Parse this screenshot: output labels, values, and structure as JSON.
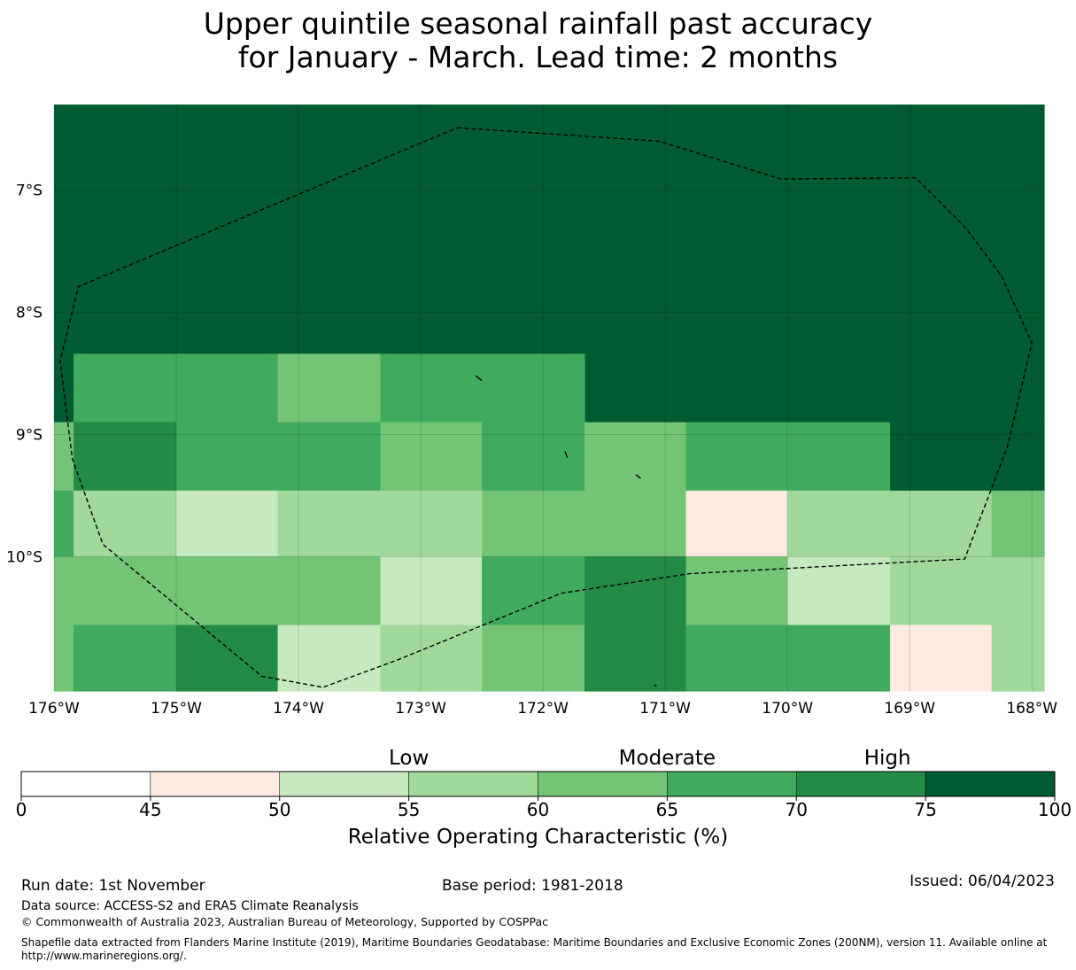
{
  "title_line1": "Upper quintile seasonal rainfall past accuracy",
  "title_line2": "for January - March. Lead time: 2 months",
  "chart_data": {
    "type": "heatmap",
    "x_ticks": [
      -176,
      -175,
      -174,
      -173,
      -172,
      -171,
      -170,
      -169,
      -168
    ],
    "x_tick_labels": [
      "176°W",
      "175°W",
      "174°W",
      "173°W",
      "172°W",
      "171°W",
      "170°W",
      "169°W",
      "168°W"
    ],
    "y_ticks": [
      -7,
      -8,
      -9,
      -10
    ],
    "y_tick_labels": [
      "7°S",
      "8°S",
      "9°S",
      "10°S"
    ],
    "xlim": [
      -176.0,
      -167.9
    ],
    "ylim": [
      -11.1,
      -6.3
    ],
    "cells": [
      {
        "lon": [
          -176.0,
          -167.9
        ],
        "lat": [
          -8.9,
          -6.3
        ],
        "roc": 80
      },
      {
        "lon": [
          -175.84,
          -175.0
        ],
        "lat": [
          -8.9,
          -8.34
        ],
        "roc": 67
      },
      {
        "lon": [
          -175.0,
          -174.17
        ],
        "lat": [
          -8.9,
          -8.34
        ],
        "roc": 67
      },
      {
        "lon": [
          -174.17,
          -173.33
        ],
        "lat": [
          -8.9,
          -8.34
        ],
        "roc": 62
      },
      {
        "lon": [
          -173.33,
          -172.5
        ],
        "lat": [
          -8.9,
          -8.34
        ],
        "roc": 67
      },
      {
        "lon": [
          -172.5,
          -171.66
        ],
        "lat": [
          -8.9,
          -8.34
        ],
        "roc": 67
      },
      {
        "lon": [
          -176.0,
          -175.84
        ],
        "lat": [
          -9.46,
          -8.9
        ],
        "roc": 62
      },
      {
        "lon": [
          -175.84,
          -175.0
        ],
        "lat": [
          -9.46,
          -8.9
        ],
        "roc": 72
      },
      {
        "lon": [
          -175.0,
          -174.17
        ],
        "lat": [
          -9.46,
          -8.9
        ],
        "roc": 67
      },
      {
        "lon": [
          -174.17,
          -173.33
        ],
        "lat": [
          -9.46,
          -8.9
        ],
        "roc": 67
      },
      {
        "lon": [
          -173.33,
          -172.5
        ],
        "lat": [
          -9.46,
          -8.9
        ],
        "roc": 62
      },
      {
        "lon": [
          -172.5,
          -171.66
        ],
        "lat": [
          -9.46,
          -8.9
        ],
        "roc": 67
      },
      {
        "lon": [
          -171.66,
          -170.83
        ],
        "lat": [
          -9.46,
          -8.9
        ],
        "roc": 62
      },
      {
        "lon": [
          -170.83,
          -170.0
        ],
        "lat": [
          -9.46,
          -8.9
        ],
        "roc": 67
      },
      {
        "lon": [
          -170.0,
          -169.16
        ],
        "lat": [
          -9.46,
          -8.9
        ],
        "roc": 67
      },
      {
        "lon": [
          -169.16,
          -167.9
        ],
        "lat": [
          -9.46,
          -8.9
        ],
        "roc": 80
      },
      {
        "lon": [
          -176.0,
          -175.84
        ],
        "lat": [
          -10.0,
          -9.46
        ],
        "roc": 67
      },
      {
        "lon": [
          -175.84,
          -175.0
        ],
        "lat": [
          -10.0,
          -9.46
        ],
        "roc": 57
      },
      {
        "lon": [
          -175.0,
          -174.17
        ],
        "lat": [
          -10.0,
          -9.46
        ],
        "roc": 52
      },
      {
        "lon": [
          -174.17,
          -173.33
        ],
        "lat": [
          -10.0,
          -9.46
        ],
        "roc": 57
      },
      {
        "lon": [
          -173.33,
          -172.5
        ],
        "lat": [
          -10.0,
          -9.46
        ],
        "roc": 57
      },
      {
        "lon": [
          -172.5,
          -171.66
        ],
        "lat": [
          -10.0,
          -9.46
        ],
        "roc": 62
      },
      {
        "lon": [
          -171.66,
          -170.83
        ],
        "lat": [
          -10.0,
          -9.46
        ],
        "roc": 62
      },
      {
        "lon": [
          -170.83,
          -170.0
        ],
        "lat": [
          -10.0,
          -9.46
        ],
        "roc": 47
      },
      {
        "lon": [
          -170.0,
          -169.16
        ],
        "lat": [
          -10.0,
          -9.46
        ],
        "roc": 57
      },
      {
        "lon": [
          -169.16,
          -168.33
        ],
        "lat": [
          -10.0,
          -9.46
        ],
        "roc": 57
      },
      {
        "lon": [
          -168.33,
          -167.9
        ],
        "lat": [
          -10.0,
          -9.46
        ],
        "roc": 62
      },
      {
        "lon": [
          -176.0,
          -175.84
        ],
        "lat": [
          -10.56,
          -10.0
        ],
        "roc": 62
      },
      {
        "lon": [
          -175.84,
          -175.0
        ],
        "lat": [
          -10.56,
          -10.0
        ],
        "roc": 62
      },
      {
        "lon": [
          -175.0,
          -174.17
        ],
        "lat": [
          -10.56,
          -10.0
        ],
        "roc": 62
      },
      {
        "lon": [
          -174.17,
          -173.33
        ],
        "lat": [
          -10.56,
          -10.0
        ],
        "roc": 62
      },
      {
        "lon": [
          -173.33,
          -172.5
        ],
        "lat": [
          -10.56,
          -10.0
        ],
        "roc": 52
      },
      {
        "lon": [
          -172.5,
          -171.66
        ],
        "lat": [
          -10.56,
          -10.0
        ],
        "roc": 67
      },
      {
        "lon": [
          -171.66,
          -170.83
        ],
        "lat": [
          -10.56,
          -10.0
        ],
        "roc": 72
      },
      {
        "lon": [
          -170.83,
          -170.0
        ],
        "lat": [
          -10.56,
          -10.0
        ],
        "roc": 62
      },
      {
        "lon": [
          -170.0,
          -169.16
        ],
        "lat": [
          -10.56,
          -10.0
        ],
        "roc": 52
      },
      {
        "lon": [
          -169.16,
          -168.33
        ],
        "lat": [
          -10.56,
          -10.0
        ],
        "roc": 57
      },
      {
        "lon": [
          -168.33,
          -167.9
        ],
        "lat": [
          -10.56,
          -10.0
        ],
        "roc": 57
      },
      {
        "lon": [
          -176.0,
          -175.84
        ],
        "lat": [
          -11.1,
          -10.56
        ],
        "roc": 62
      },
      {
        "lon": [
          -175.84,
          -175.0
        ],
        "lat": [
          -11.1,
          -10.56
        ],
        "roc": 67
      },
      {
        "lon": [
          -175.0,
          -174.17
        ],
        "lat": [
          -11.1,
          -10.56
        ],
        "roc": 72
      },
      {
        "lon": [
          -174.17,
          -173.33
        ],
        "lat": [
          -11.1,
          -10.56
        ],
        "roc": 52
      },
      {
        "lon": [
          -173.33,
          -172.5
        ],
        "lat": [
          -11.1,
          -10.56
        ],
        "roc": 57
      },
      {
        "lon": [
          -172.5,
          -171.66
        ],
        "lat": [
          -11.1,
          -10.56
        ],
        "roc": 62
      },
      {
        "lon": [
          -171.66,
          -170.83
        ],
        "lat": [
          -11.1,
          -10.56
        ],
        "roc": 72
      },
      {
        "lon": [
          -170.83,
          -170.0
        ],
        "lat": [
          -11.1,
          -10.56
        ],
        "roc": 67
      },
      {
        "lon": [
          -170.0,
          -169.16
        ],
        "lat": [
          -11.1,
          -10.56
        ],
        "roc": 67
      },
      {
        "lon": [
          -169.16,
          -168.33
        ],
        "lat": [
          -11.1,
          -10.56
        ],
        "roc": 47
      },
      {
        "lon": [
          -168.33,
          -167.9
        ],
        "lat": [
          -11.1,
          -10.56
        ],
        "roc": 57
      }
    ],
    "eez_boundary": [
      [
        -172.7,
        -6.49
      ],
      [
        -171.05,
        -6.6
      ],
      [
        -170.05,
        -6.91
      ],
      [
        -168.95,
        -6.9
      ],
      [
        -168.55,
        -7.3
      ],
      [
        -168.25,
        -7.7
      ],
      [
        -168.0,
        -8.25
      ],
      [
        -168.2,
        -9.1
      ],
      [
        -168.55,
        -10.02
      ],
      [
        -170.8,
        -10.14
      ],
      [
        -171.85,
        -10.3
      ],
      [
        -173.2,
        -10.85
      ],
      [
        -173.8,
        -11.07
      ],
      [
        -174.3,
        -10.98
      ],
      [
        -175.6,
        -9.9
      ],
      [
        -175.85,
        -9.2
      ],
      [
        -175.95,
        -8.4
      ],
      [
        -175.8,
        -7.79
      ],
      [
        -172.7,
        -6.49
      ]
    ],
    "islands": [
      [
        [
          -172.55,
          -8.52
        ],
        [
          -172.5,
          -8.56
        ]
      ],
      [
        [
          -171.82,
          -9.14
        ],
        [
          -171.8,
          -9.19
        ]
      ],
      [
        [
          -171.24,
          -9.33
        ],
        [
          -171.2,
          -9.36
        ]
      ],
      [
        [
          -171.09,
          -11.05
        ],
        [
          -171.07,
          -11.06
        ]
      ]
    ],
    "colorbar": {
      "bounds": [
        0,
        45,
        50,
        55,
        60,
        65,
        70,
        75,
        100
      ],
      "colors": [
        "#ffffff",
        "#feeae0",
        "#c7e9c0",
        "#a1d99b",
        "#74c476",
        "#41ab5d",
        "#238b45",
        "#005a32"
      ],
      "tick_labels": [
        "0",
        "45",
        "50",
        "55",
        "60",
        "65",
        "70",
        "75",
        "100"
      ],
      "category_labels": [
        "Low",
        "Moderate",
        "High"
      ],
      "label": "Relative Operating Characteristic (%)"
    }
  },
  "footer": {
    "run_date": "Run date: 1st November",
    "base_period": "Base period: 1981-2018",
    "issued": "Issued: 06/04/2023",
    "data_source": "Data source: ACCESS-S2 and ERA5 Climate Reanalysis",
    "copyright": "© Commonwealth of Australia 2023, Australian Bureau of Meteorology, Supported by COSPPac",
    "shapefile_line1": "Shapefile data extracted from Flanders Marine Institute (2019), Maritime Boundaries Geodatabase: Maritime Boundaries and Exclusive Economic Zones (200NM), version 11. Available online at",
    "shapefile_line2": "http://www.marineregions.org/."
  }
}
